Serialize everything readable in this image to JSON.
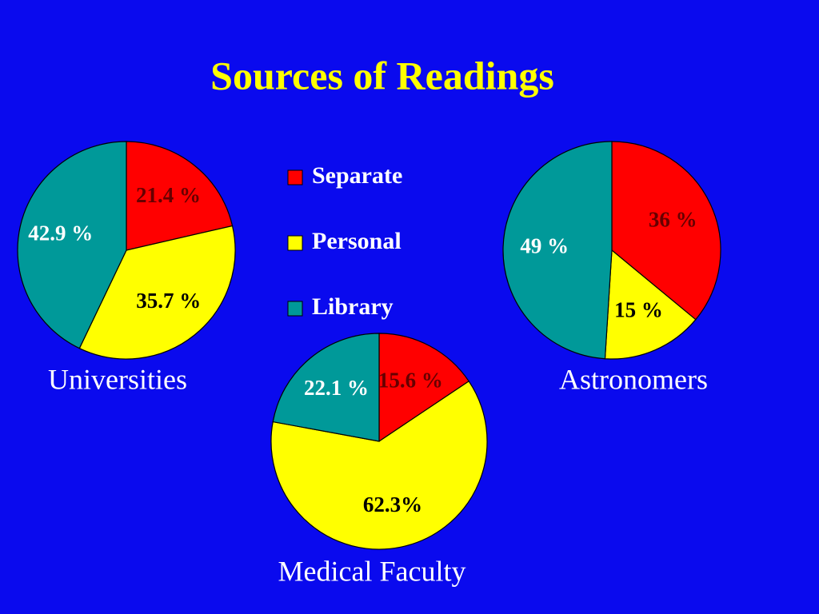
{
  "title": "Sources of Readings",
  "chart_data": [
    {
      "type": "pie",
      "title": "Universities",
      "categories": [
        "Separate",
        "Personal",
        "Library"
      ],
      "values": [
        21.4,
        35.7,
        42.9
      ],
      "value_labels": [
        "21.4 %",
        "35.7 %",
        "42.9 %"
      ],
      "colors": [
        "#ff0000",
        "#ffff00",
        "#009999"
      ]
    },
    {
      "type": "pie",
      "title": "Astronomers",
      "categories": [
        "Separate",
        "Personal",
        "Library"
      ],
      "values": [
        36,
        15,
        49
      ],
      "value_labels": [
        "36 %",
        "15 %",
        "49 %"
      ],
      "colors": [
        "#ff0000",
        "#ffff00",
        "#009999"
      ]
    },
    {
      "type": "pie",
      "title": "Medical Faculty",
      "categories": [
        "Separate",
        "Personal",
        "Library"
      ],
      "values": [
        15.6,
        62.3,
        22.1
      ],
      "value_labels": [
        "15.6 %",
        "62.3%",
        "22.1 %"
      ],
      "colors": [
        "#ff0000",
        "#ffff00",
        "#009999"
      ]
    }
  ]
}
